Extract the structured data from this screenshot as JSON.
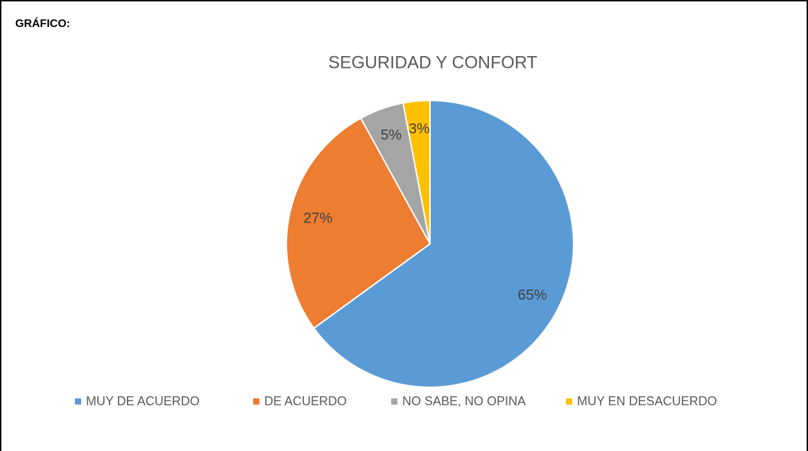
{
  "heading": "GRÁFICO:",
  "chart_data": {
    "type": "pie",
    "title": "SEGURIDAD Y CONFORT",
    "categories": [
      "MUY DE ACUERDO",
      "DE ACUERDO",
      "NO SABE, NO OPINA",
      "MUY EN DESACUERDO"
    ],
    "values": [
      65,
      27,
      5,
      3
    ],
    "value_labels": [
      "65%",
      "27%",
      "5%",
      "3%"
    ],
    "colors": [
      "#5b9bd5",
      "#ed7d31",
      "#a5a5a5",
      "#ffc000"
    ],
    "legend": "bottom"
  }
}
